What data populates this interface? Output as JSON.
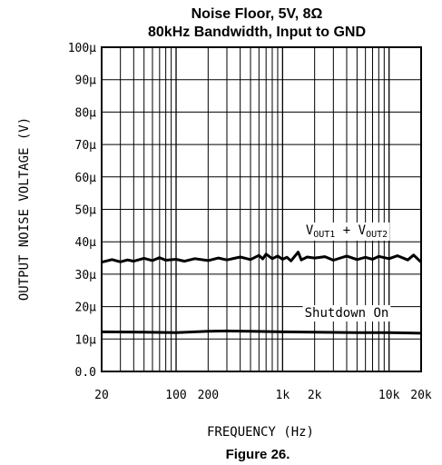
{
  "chart_data": {
    "type": "line",
    "title_line1": "Noise Floor, 5V, 8Ω",
    "title_line2": "80kHz Bandwidth, Input to GND",
    "xlabel": "FREQUENCY (Hz)",
    "ylabel": "OUTPUT NOISE VOLTAGE (V)",
    "caption": "Figure 26.",
    "x_scale": "log",
    "xlim": [
      20,
      20000
    ],
    "ylim": [
      0,
      0.0001
    ],
    "grid": true,
    "x_ticks": [
      {
        "value": 20,
        "label": "20"
      },
      {
        "value": 100,
        "label": "100"
      },
      {
        "value": 200,
        "label": "200"
      },
      {
        "value": 1000,
        "label": "1k"
      },
      {
        "value": 2000,
        "label": "2k"
      },
      {
        "value": 10000,
        "label": "10k"
      },
      {
        "value": 20000,
        "label": "20k"
      }
    ],
    "y_ticks": [
      {
        "value": 0,
        "label": "0.0"
      },
      {
        "value": 1e-05,
        "label": "10µ"
      },
      {
        "value": 2e-05,
        "label": "20µ"
      },
      {
        "value": 3e-05,
        "label": "30µ"
      },
      {
        "value": 4e-05,
        "label": "40µ"
      },
      {
        "value": 5e-05,
        "label": "50µ"
      },
      {
        "value": 6e-05,
        "label": "60µ"
      },
      {
        "value": 7e-05,
        "label": "70µ"
      },
      {
        "value": 8e-05,
        "label": "80µ"
      },
      {
        "value": 9e-05,
        "label": "90µ"
      },
      {
        "value": 0.0001,
        "label": "100µ"
      }
    ],
    "series": [
      {
        "name": "VOUT1 + VOUT2",
        "x": [
          20,
          25,
          30,
          35,
          40,
          50,
          60,
          70,
          80,
          100,
          120,
          150,
          200,
          250,
          300,
          400,
          500,
          600,
          650,
          700,
          800,
          900,
          1000,
          1100,
          1200,
          1400,
          1500,
          1700,
          2000,
          2500,
          3000,
          4000,
          5000,
          6000,
          7000,
          8000,
          10000,
          12000,
          15000,
          17000,
          20000
        ],
        "y": [
          3.37e-05,
          3.45e-05,
          3.38e-05,
          3.44e-05,
          3.4e-05,
          3.49e-05,
          3.42e-05,
          3.51e-05,
          3.43e-05,
          3.46e-05,
          3.4e-05,
          3.48e-05,
          3.42e-05,
          3.5e-05,
          3.44e-05,
          3.53e-05,
          3.45e-05,
          3.58e-05,
          3.47e-05,
          3.62e-05,
          3.48e-05,
          3.56e-05,
          3.46e-05,
          3.52e-05,
          3.41e-05,
          3.68e-05,
          3.44e-05,
          3.53e-05,
          3.5e-05,
          3.54e-05,
          3.43e-05,
          3.56e-05,
          3.45e-05,
          3.52e-05,
          3.46e-05,
          3.55e-05,
          3.48e-05,
          3.57e-05,
          3.44e-05,
          3.59e-05,
          3.37e-05
        ]
      },
      {
        "name": "Shutdown On",
        "x": [
          20,
          50,
          100,
          200,
          300,
          500,
          1000,
          2000,
          5000,
          10000,
          20000
        ],
        "y": [
          1.22e-05,
          1.21e-05,
          1.2e-05,
          1.24e-05,
          1.25e-05,
          1.24e-05,
          1.22e-05,
          1.21e-05,
          1.2e-05,
          1.2e-05,
          1.18e-05
        ]
      }
    ],
    "annotations": [
      {
        "text_main": "V",
        "sub1": "OUT1",
        "mid": " + V",
        "sub2": "OUT2",
        "x": 4000,
        "y": 4.23e-05
      },
      {
        "text": "Shutdown On",
        "x": 4000,
        "y": 1.68e-05
      }
    ],
    "colors": {
      "line": "#000000",
      "grid": "#000000",
      "background": "#ffffff"
    }
  }
}
